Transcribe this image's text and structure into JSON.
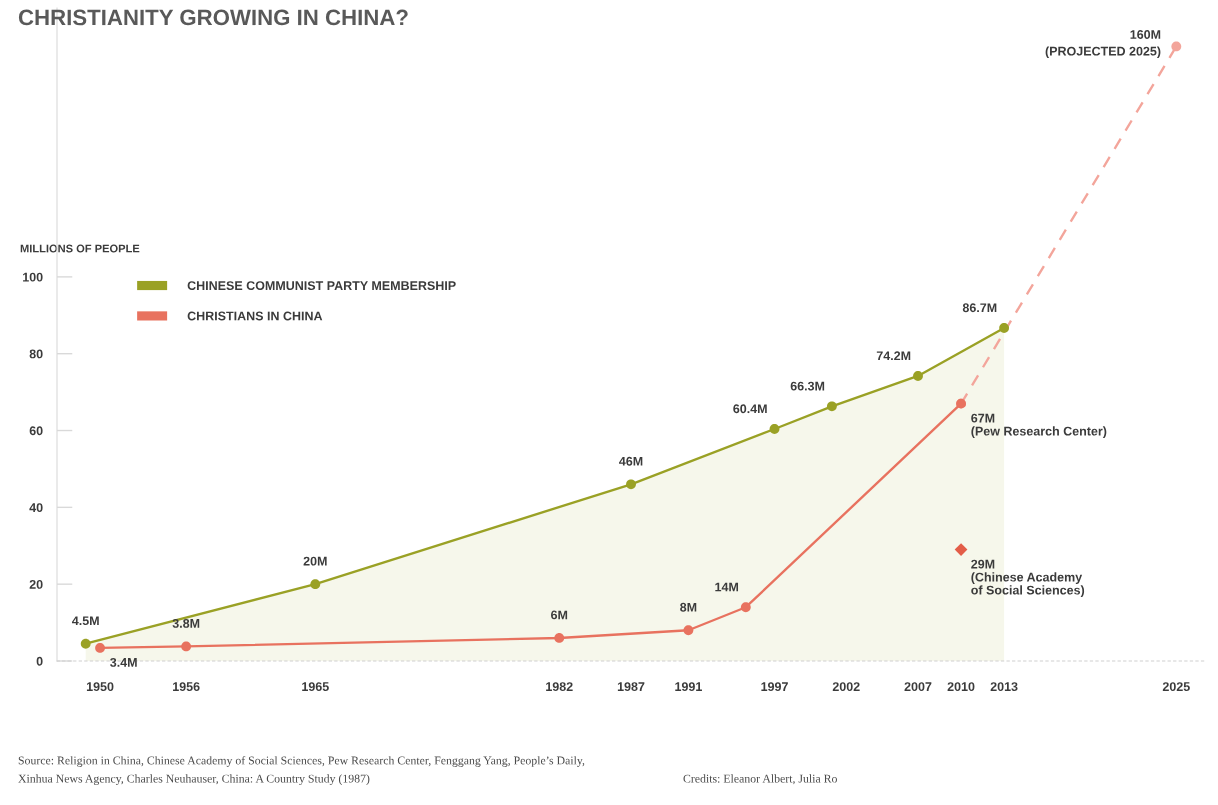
{
  "chart_data": {
    "type": "line",
    "title": "CHRISTIANITY GROWING IN CHINA?",
    "ylabel": "MILLIONS OF PEOPLE",
    "xlim": [
      1947,
      2027
    ],
    "xticks": [
      1950,
      1956,
      1965,
      1982,
      1987,
      1991,
      1997,
      2002,
      2007,
      2010,
      2013,
      2025
    ],
    "ylim": [
      0,
      170
    ],
    "yticks": [
      0,
      20,
      40,
      60,
      80,
      100
    ],
    "grid": false,
    "legend": "left",
    "marker": "circle",
    "series": [
      {
        "name": "CHINESE COMMUNIST PARTY MEMBERSHIP",
        "type": "area",
        "color": "#9aa125",
        "x": [
          1949,
          1965,
          1987,
          1997,
          2001,
          2007,
          2013
        ],
        "values": [
          4.5,
          20,
          46,
          60.4,
          66.3,
          74.2,
          86.7
        ],
        "value_labels": [
          "4.5M",
          "20M",
          "46M",
          "60.4M",
          "66.3M",
          "74.2M",
          "86.7M"
        ]
      },
      {
        "name": "CHRISTIANS IN CHINA",
        "color": "#e8725f",
        "x": [
          1950,
          1956,
          1982,
          1991,
          1995,
          2010
        ],
        "values": [
          3.4,
          3.8,
          6,
          8,
          14,
          67
        ],
        "value_labels": [
          "3.4M",
          "3.8M",
          "6M",
          "8M",
          "14M",
          "67M\n(Pew Research Center)"
        ]
      },
      {
        "name": "(PROJECTED 2025)",
        "color": "#f3a59b",
        "line_style": "dashed",
        "x": [
          2010,
          2025
        ],
        "values": [
          67,
          160
        ],
        "value_labels": [
          null,
          "160M"
        ]
      },
      {
        "type": "scatter",
        "color": "#e35d48",
        "marker": "diamond",
        "x": [
          2010
        ],
        "values": [
          29
        ],
        "value_labels": [
          "29M\n(Chinese Academy\nof Social Sciences)"
        ]
      }
    ],
    "annotations": [
      "Source: Religion in China, Chinese Academy of Social Sciences, Pew Research Center, Fenggang Yang, People’s Daily,\nXinhua News Agency, Charles Neuhauser, China: A Country Study (1987)",
      "Credits: Eleanor Albert, Julia Ro"
    ]
  }
}
